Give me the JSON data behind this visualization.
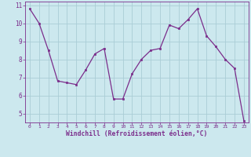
{
  "x": [
    0,
    1,
    2,
    3,
    4,
    5,
    6,
    7,
    8,
    9,
    10,
    11,
    12,
    13,
    14,
    15,
    16,
    17,
    18,
    19,
    20,
    21,
    22,
    23
  ],
  "y": [
    10.8,
    10.0,
    8.5,
    6.8,
    6.7,
    6.6,
    7.4,
    8.3,
    8.6,
    5.8,
    5.8,
    7.2,
    8.0,
    8.5,
    8.6,
    9.9,
    9.7,
    10.2,
    10.8,
    9.3,
    8.7,
    8.0,
    7.5,
    4.6
  ],
  "line_color": "#7b2d8b",
  "marker_color": "#7b2d8b",
  "bg_color": "#cce8ee",
  "grid_color": "#aacdd6",
  "xlabel": "Windchill (Refroidissement éolien,°C)",
  "ylim_min": 4.5,
  "ylim_max": 11.2,
  "xlim_min": -0.5,
  "xlim_max": 23.5,
  "yticks": [
    5,
    6,
    7,
    8,
    9,
    10,
    11
  ],
  "xticks": [
    0,
    1,
    2,
    3,
    4,
    5,
    6,
    7,
    8,
    9,
    10,
    11,
    12,
    13,
    14,
    15,
    16,
    17,
    18,
    19,
    20,
    21,
    22,
    23
  ]
}
